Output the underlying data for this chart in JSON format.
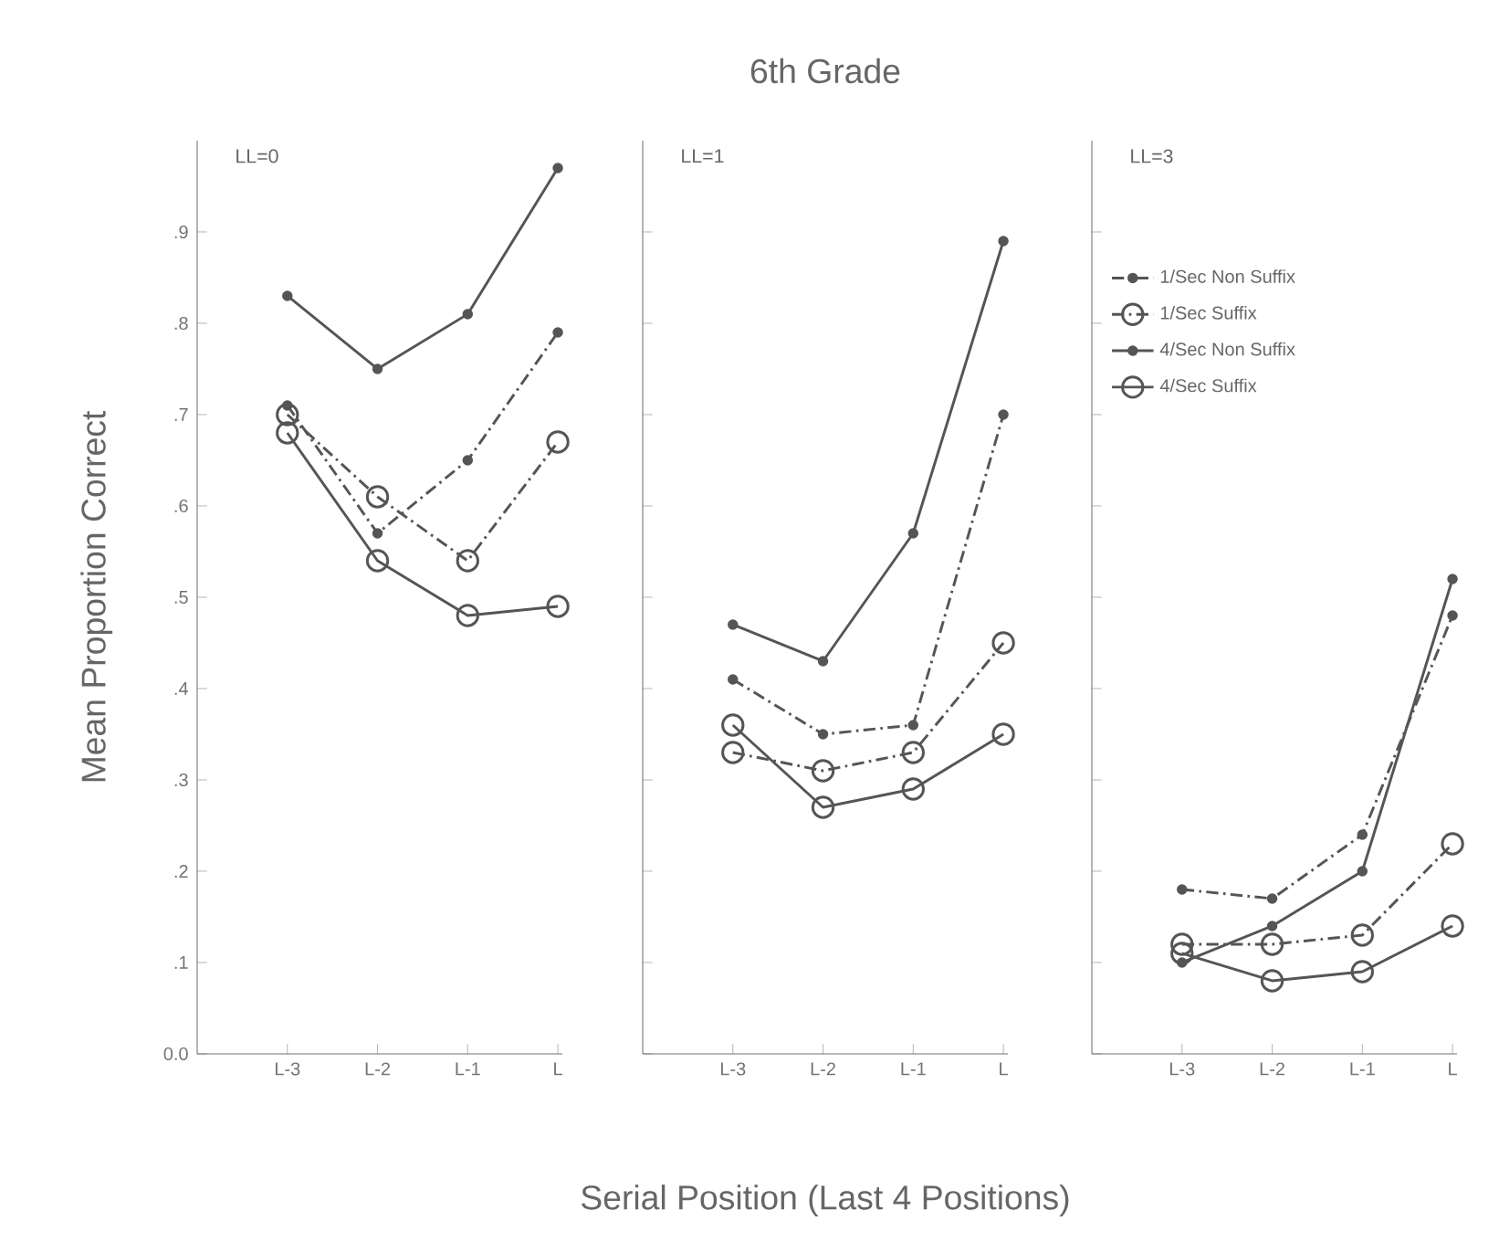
{
  "chart_data": [
    {
      "type": "line",
      "ylabel": "Mean Proportion Correct",
      "annotations": [
        "LL=0"
      ],
      "categories": [
        "L-3",
        "L-2",
        "L-1",
        "L"
      ],
      "ylim": [
        0,
        1.0
      ],
      "yticks": [
        {
          "value": 0,
          "label": "0.0"
        },
        {
          "value": 0.1,
          "label": ".1"
        },
        {
          "value": 0.2,
          "label": ".2"
        },
        {
          "value": 0.3,
          "label": ".3"
        },
        {
          "value": 0.4,
          "label": ".4"
        },
        {
          "value": 0.5,
          "label": ".5"
        },
        {
          "value": 0.6,
          "label": ".6"
        },
        {
          "value": 0.7,
          "label": ".7"
        },
        {
          "value": 0.8,
          "label": ".8"
        },
        {
          "value": 0.9,
          "label": ".9"
        }
      ],
      "series": [
        {
          "color": "#555555",
          "marker": "dot",
          "line_style": "dashdot",
          "values": [
            0.71,
            0.57,
            0.65,
            0.79
          ]
        },
        {
          "color": "#555555",
          "marker": "circle",
          "line_style": "dashdot",
          "values": [
            0.7,
            0.61,
            0.54,
            0.67
          ]
        },
        {
          "color": "#555555",
          "marker": "dot",
          "line_style": "solid",
          "values": [
            0.83,
            0.75,
            0.81,
            0.97
          ]
        },
        {
          "color": "#555555",
          "marker": "circle",
          "line_style": "solid",
          "values": [
            0.68,
            0.54,
            0.48,
            0.49
          ]
        }
      ]
    },
    {
      "type": "line",
      "title": "6th Grade",
      "xlabel": "Serial Position (Last 4 Positions)",
      "annotations": [
        "LL=1"
      ],
      "categories": [
        "L-3",
        "L-2",
        "L-1",
        "L"
      ],
      "ylim": [
        0,
        1.0
      ],
      "tick_labels": "x",
      "yticks": [
        {
          "value": 0,
          "label": null
        },
        {
          "value": 0.1,
          "label": null
        },
        {
          "value": 0.2,
          "label": null
        },
        {
          "value": 0.3,
          "label": null
        },
        {
          "value": 0.4,
          "label": null
        },
        {
          "value": 0.5,
          "label": null
        },
        {
          "value": 0.6,
          "label": null
        },
        {
          "value": 0.7,
          "label": null
        },
        {
          "value": 0.8,
          "label": null
        },
        {
          "value": 0.9,
          "label": null
        }
      ],
      "series": [
        {
          "color": "#555555",
          "marker": "dot",
          "line_style": "dashdot",
          "values": [
            0.41,
            0.35,
            0.36,
            0.7
          ]
        },
        {
          "color": "#555555",
          "marker": "circle",
          "line_style": "dashdot",
          "values": [
            0.33,
            0.31,
            0.33,
            0.45
          ]
        },
        {
          "color": "#555555",
          "marker": "dot",
          "line_style": "solid",
          "values": [
            0.47,
            0.43,
            0.57,
            0.89
          ]
        },
        {
          "color": "#555555",
          "marker": "circle",
          "line_style": "solid",
          "values": [
            0.36,
            0.27,
            0.29,
            0.35
          ]
        }
      ]
    },
    {
      "type": "line",
      "annotations": [
        "LL=3"
      ],
      "categories": [
        "L-3",
        "L-2",
        "L-1",
        "L"
      ],
      "ylim": [
        0,
        1.0
      ],
      "tick_labels": "x",
      "legend": "top left",
      "yticks": [
        {
          "value": 0,
          "label": null
        },
        {
          "value": 0.1,
          "label": null
        },
        {
          "value": 0.2,
          "label": null
        },
        {
          "value": 0.3,
          "label": null
        },
        {
          "value": 0.4,
          "label": null
        },
        {
          "value": 0.5,
          "label": null
        },
        {
          "value": 0.6,
          "label": null
        },
        {
          "value": 0.7,
          "label": null
        },
        {
          "value": 0.8,
          "label": null
        },
        {
          "value": 0.9,
          "label": null
        }
      ],
      "series": [
        {
          "name": "1/Sec Non Suffix",
          "color": "#555555",
          "marker": "dot",
          "line_style": "dashdot",
          "values": [
            0.18,
            0.17,
            0.24,
            0.48
          ]
        },
        {
          "name": "1/Sec Suffix",
          "color": "#555555",
          "marker": "circle",
          "line_style": "dashdot",
          "values": [
            0.12,
            0.12,
            0.13,
            0.23
          ]
        },
        {
          "name": "4/Sec Non Suffix",
          "color": "#555555",
          "marker": "dot",
          "line_style": "solid",
          "values": [
            0.1,
            0.14,
            0.2,
            0.52
          ]
        },
        {
          "name": "4/Sec Suffix",
          "color": "#555555",
          "marker": "circle",
          "line_style": "solid",
          "values": [
            0.11,
            0.08,
            0.09,
            0.14
          ]
        }
      ]
    }
  ]
}
